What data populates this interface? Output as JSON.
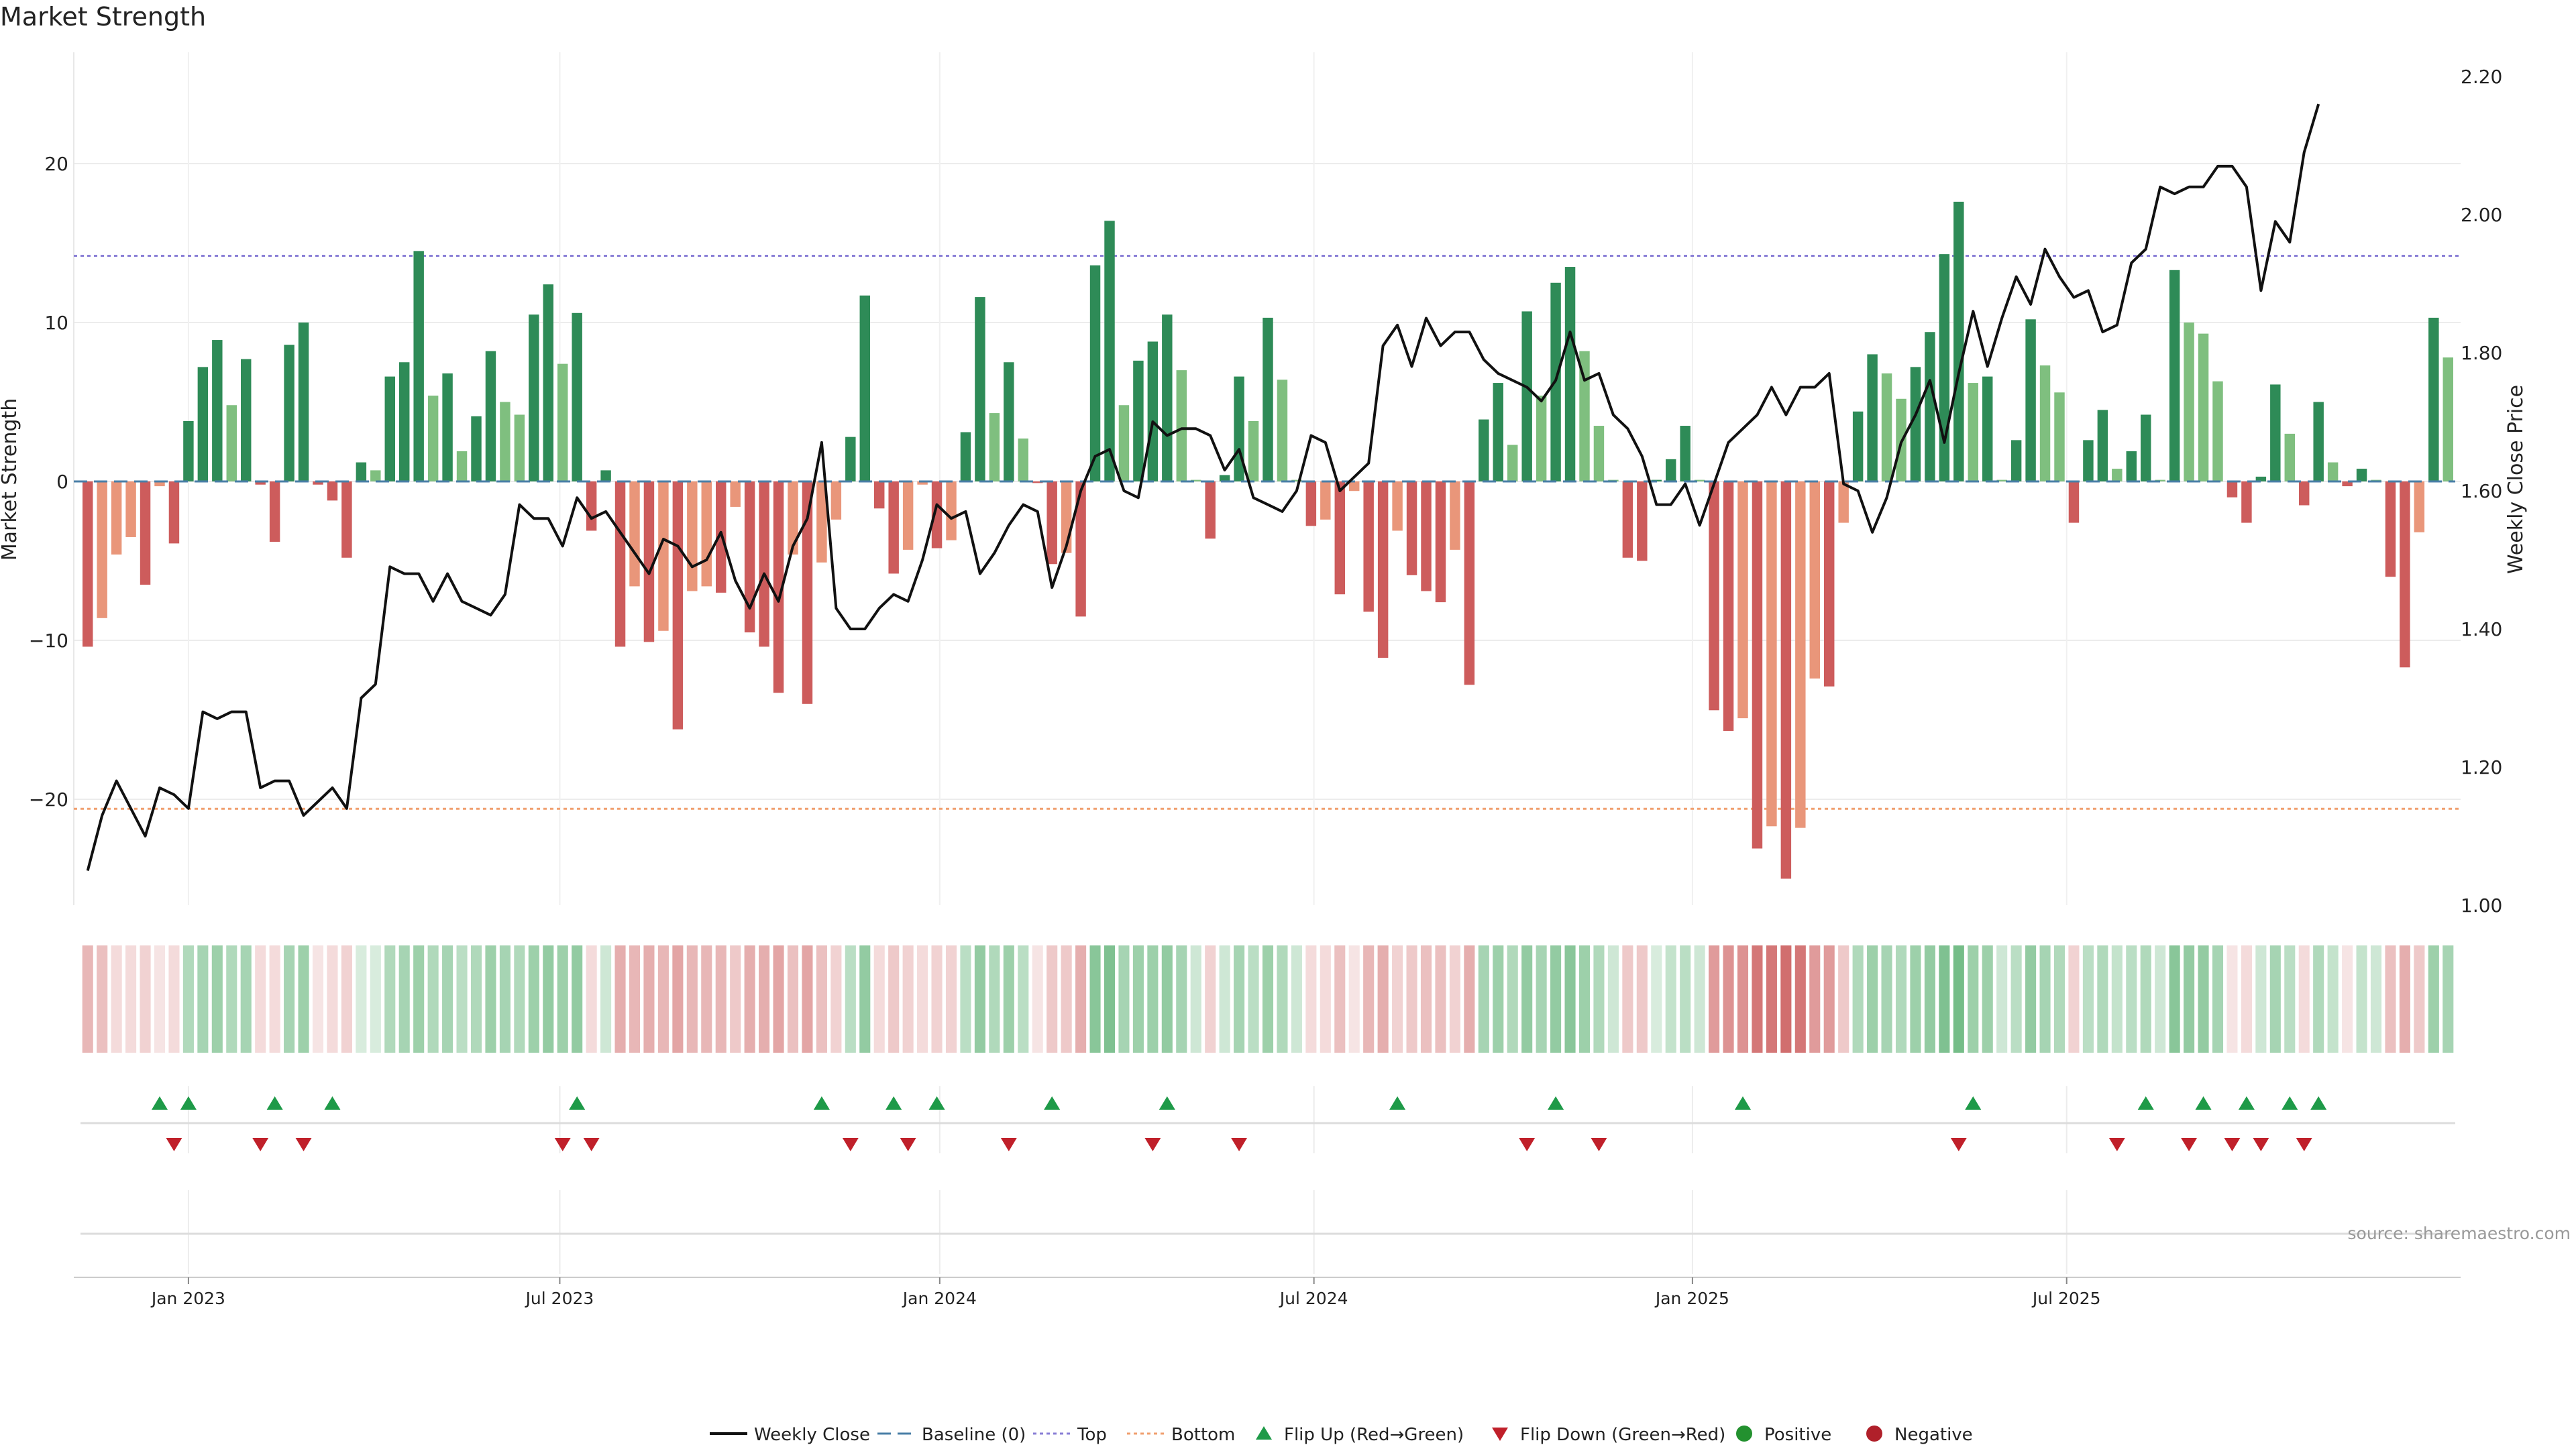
{
  "chart_data": {
    "type": "bar",
    "title": "Market Strength",
    "ylabel_left": "Market Strength",
    "ylabel_right": "Weekly Close Price",
    "ylim_left": [
      -27,
      27
    ],
    "ylim_right": [
      1.0,
      2.2
    ],
    "yticks_left": [
      -20,
      -10,
      0,
      10,
      20
    ],
    "yticks_right": [
      "1.00",
      "1.20",
      "1.40",
      "1.60",
      "1.80",
      "2.00",
      "2.20"
    ],
    "xticks": [
      "Jan 2023",
      "Jul 2023",
      "Jan 2024",
      "Jul 2024",
      "Jan 2025",
      "Jul 2025"
    ],
    "xtick_week_index": [
      7.5,
      33.3,
      59.7,
      85.7,
      112,
      138
    ],
    "grid": true,
    "top_level": 14.2,
    "bottom_level": -20.6,
    "strength": [
      -10.4,
      -8.6,
      -4.6,
      -3.5,
      -6.5,
      -0.3,
      -3.9,
      3.8,
      7.2,
      8.9,
      4.8,
      7.7,
      -0.2,
      -3.8,
      8.6,
      10.0,
      -0.2,
      -1.2,
      -4.8,
      1.2,
      0.7,
      6.6,
      7.5,
      14.5,
      5.4,
      6.8,
      1.9,
      4.1,
      8.2,
      5.0,
      4.2,
      10.5,
      12.4,
      7.4,
      10.6,
      -3.1,
      0.7,
      -10.4,
      -6.6,
      -10.1,
      -9.4,
      -15.6,
      -6.9,
      -6.6,
      -7.0,
      -1.6,
      -9.5,
      -10.4,
      -13.3,
      -4.6,
      -14.0,
      -5.1,
      -2.4,
      2.8,
      11.7,
      -1.7,
      -5.8,
      -4.3,
      -0.2,
      -4.2,
      -3.7,
      3.1,
      11.6,
      4.3,
      7.5,
      2.7,
      -0.1,
      -5.2,
      -4.5,
      -8.5,
      13.6,
      16.4,
      4.8,
      7.6,
      8.8,
      10.5,
      7.0,
      0.1,
      -3.6,
      0.4,
      6.6,
      3.8,
      10.3,
      6.4,
      0.1,
      -2.8,
      -2.4,
      -7.1,
      -0.6,
      -8.2,
      -11.1,
      -3.1,
      -5.9,
      -6.9,
      -7.6,
      -4.3,
      -12.8,
      3.9,
      6.2,
      2.3,
      10.7,
      5.4,
      12.5,
      13.5,
      8.2,
      3.5,
      0.1,
      -4.8,
      -5.0,
      0.1,
      1.4,
      3.5,
      0.1,
      -14.4,
      -15.7,
      -14.9,
      -23.1,
      -21.7,
      -25.0,
      -21.8,
      -12.4,
      -12.9,
      -2.6,
      4.4,
      8.0,
      6.8,
      5.2,
      7.2,
      9.4,
      14.3,
      17.6,
      6.2,
      6.6,
      0.1,
      2.6,
      10.2,
      7.3,
      5.6,
      -2.6,
      2.6,
      4.5,
      0.8,
      1.9,
      4.2,
      0.1,
      13.3,
      10.0,
      9.3,
      6.3,
      -1.0,
      -2.6,
      0.3,
      6.1,
      3.0,
      -1.5,
      5.0,
      1.2,
      -0.3,
      0.8,
      0.1,
      -6.0,
      -11.7,
      -3.2,
      10.3,
      7.8
    ],
    "weekly_close": [
      1.05,
      1.13,
      1.18,
      1.14,
      1.1,
      1.17,
      1.16,
      1.14,
      1.28,
      1.27,
      1.28,
      1.28,
      1.17,
      1.18,
      1.18,
      1.13,
      1.15,
      1.17,
      1.14,
      1.3,
      1.32,
      1.49,
      1.48,
      1.48,
      1.44,
      1.48,
      1.44,
      1.43,
      1.42,
      1.45,
      1.58,
      1.56,
      1.56,
      1.52,
      1.59,
      1.56,
      1.57,
      1.54,
      1.51,
      1.48,
      1.53,
      1.52,
      1.49,
      1.5,
      1.54,
      1.47,
      1.43,
      1.48,
      1.44,
      1.52,
      1.56,
      1.67,
      1.43,
      1.4,
      1.4,
      1.43,
      1.45,
      1.44,
      1.5,
      1.58,
      1.56,
      1.57,
      1.48,
      1.51,
      1.55,
      1.58,
      1.57,
      1.46,
      1.52,
      1.6,
      1.65,
      1.66,
      1.6,
      1.59,
      1.7,
      1.68,
      1.69,
      1.69,
      1.68,
      1.63,
      1.66,
      1.59,
      1.58,
      1.57,
      1.6,
      1.68,
      1.67,
      1.6,
      1.62,
      1.64,
      1.81,
      1.84,
      1.78,
      1.85,
      1.81,
      1.83,
      1.83,
      1.79,
      1.77,
      1.76,
      1.75,
      1.73,
      1.76,
      1.83,
      1.76,
      1.77,
      1.71,
      1.69,
      1.65,
      1.58,
      1.58,
      1.61,
      1.55,
      1.61,
      1.67,
      1.69,
      1.71,
      1.75,
      1.71,
      1.75,
      1.75,
      1.77,
      1.61,
      1.6,
      1.54,
      1.59,
      1.67,
      1.71,
      1.76,
      1.67,
      1.77,
      1.86,
      1.78,
      1.85,
      1.91,
      1.87,
      1.95,
      1.91,
      1.88,
      1.89,
      1.83,
      1.84,
      1.93,
      1.95,
      2.04,
      2.03,
      2.04,
      2.04,
      2.07,
      2.07,
      2.04,
      1.89,
      1.99,
      1.96,
      2.09,
      2.16
    ],
    "heat_strip_levels": [
      0.4,
      0.35,
      0.2,
      0.2,
      0.25,
      0.15,
      0.2,
      0.4,
      0.45,
      0.5,
      0.4,
      0.45,
      0.2,
      0.2,
      0.45,
      0.5,
      0.15,
      0.2,
      0.25,
      0.2,
      0.2,
      0.4,
      0.45,
      0.5,
      0.4,
      0.45,
      0.35,
      0.4,
      0.5,
      0.45,
      0.4,
      0.5,
      0.55,
      0.5,
      0.55,
      0.2,
      0.25,
      0.45,
      0.4,
      0.45,
      0.4,
      0.5,
      0.4,
      0.4,
      0.4,
      0.3,
      0.45,
      0.45,
      0.5,
      0.35,
      0.5,
      0.35,
      0.25,
      0.35,
      0.55,
      0.2,
      0.3,
      0.25,
      0.2,
      0.25,
      0.25,
      0.35,
      0.55,
      0.4,
      0.5,
      0.35,
      0.15,
      0.3,
      0.3,
      0.45,
      0.6,
      0.65,
      0.45,
      0.5,
      0.5,
      0.55,
      0.45,
      0.25,
      0.25,
      0.25,
      0.45,
      0.35,
      0.5,
      0.4,
      0.25,
      0.2,
      0.2,
      0.35,
      0.15,
      0.4,
      0.45,
      0.25,
      0.3,
      0.35,
      0.35,
      0.25,
      0.45,
      0.45,
      0.5,
      0.4,
      0.55,
      0.45,
      0.55,
      0.6,
      0.5,
      0.4,
      0.25,
      0.3,
      0.3,
      0.2,
      0.3,
      0.35,
      0.25,
      0.55,
      0.6,
      0.6,
      0.75,
      0.75,
      0.8,
      0.75,
      0.55,
      0.55,
      0.3,
      0.4,
      0.5,
      0.45,
      0.4,
      0.5,
      0.55,
      0.65,
      0.7,
      0.5,
      0.5,
      0.25,
      0.35,
      0.55,
      0.45,
      0.4,
      0.25,
      0.35,
      0.4,
      0.3,
      0.35,
      0.4,
      0.25,
      0.6,
      0.55,
      0.55,
      0.45,
      0.15,
      0.2,
      0.25,
      0.45,
      0.35,
      0.2,
      0.4,
      0.3,
      0.15,
      0.3,
      0.25,
      0.35,
      0.45,
      0.3,
      0.5,
      0.45
    ],
    "flip_up_weeks": [
      5,
      7,
      13,
      17,
      34,
      51,
      56,
      59,
      67,
      75,
      91,
      102,
      115,
      131,
      143,
      147,
      150,
      153,
      155
    ],
    "flip_down_weeks": [
      6,
      12,
      15,
      33,
      35,
      53,
      57,
      64,
      74,
      80,
      100,
      105,
      130,
      141,
      146,
      149,
      151,
      154
    ],
    "legend": {
      "placement": "bottom-center",
      "entries": [
        {
          "name": "Weekly Close",
          "symbol": "line",
          "color": "#111111"
        },
        {
          "name": "Baseline (0)",
          "symbol": "dash",
          "color": "#4a7fa7"
        },
        {
          "name": "Top",
          "symbol": "dotted",
          "color": "#8a7fd6"
        },
        {
          "name": "Bottom",
          "symbol": "dotted",
          "color": "#f0a070"
        },
        {
          "name": "Flip Up (Red→Green)",
          "symbol": "triangle-up",
          "color": "#1e9a48"
        },
        {
          "name": "Flip Down (Green→Red)",
          "symbol": "triangle-down",
          "color": "#c0202a"
        },
        {
          "name": "Positive",
          "symbol": "circle",
          "color": "#23912f"
        },
        {
          "name": "Negative",
          "symbol": "circle",
          "color": "#b0202a"
        }
      ]
    },
    "colors": {
      "strong_positive": "#2e8b57",
      "weak_positive": "#7fbf7f",
      "strong_negative": "#cd5c5c",
      "weak_negative": "#e9967a",
      "top_line": "#8a7fd6",
      "bottom_line": "#f0a070",
      "baseline": "#4a7fa7",
      "price_line": "#111111",
      "flip_up": "#1e9a48",
      "flip_down": "#c0202a"
    },
    "source": "source: sharemaestro.com"
  }
}
